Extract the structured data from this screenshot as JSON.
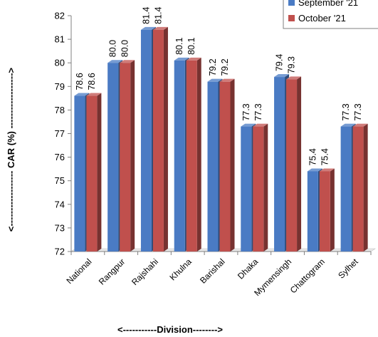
{
  "chart_data": {
    "type": "bar",
    "categories": [
      "National",
      "Rangpur",
      "Rajshahi",
      "Khulna",
      "Barishal",
      "Dhaka",
      "Mymensingh",
      "Chattogram",
      "Sylhet"
    ],
    "series": [
      {
        "name": "September '21",
        "values": [
          78.6,
          80.0,
          81.4,
          80.1,
          79.2,
          77.3,
          79.4,
          75.4,
          77.3
        ],
        "color": "#4a7bc4"
      },
      {
        "name": "October '21",
        "values": [
          78.6,
          80.0,
          81.4,
          80.1,
          79.2,
          77.3,
          79.3,
          75.4,
          77.3
        ],
        "color": "#c0504d"
      }
    ],
    "value_labels": [
      [
        "78.6",
        "80.0",
        "81.4",
        "80.1",
        "79.2",
        "77.3",
        "79.4",
        "75.4",
        "77.3"
      ],
      [
        "78.6",
        "80.0",
        "81.4",
        "80.1",
        "79.2",
        "77.3",
        "79.3",
        "75.4",
        "77.3"
      ]
    ],
    "xlabel": "<-----------Division-------->",
    "ylabel": "<------------------ CAR (%) ------------------>",
    "ylim": [
      72,
      82
    ],
    "yticks": [
      "72",
      "73",
      "74",
      "75",
      "76",
      "77",
      "78",
      "79",
      "80",
      "81",
      "82"
    ],
    "legend_position": "top-right",
    "grid": false
  }
}
